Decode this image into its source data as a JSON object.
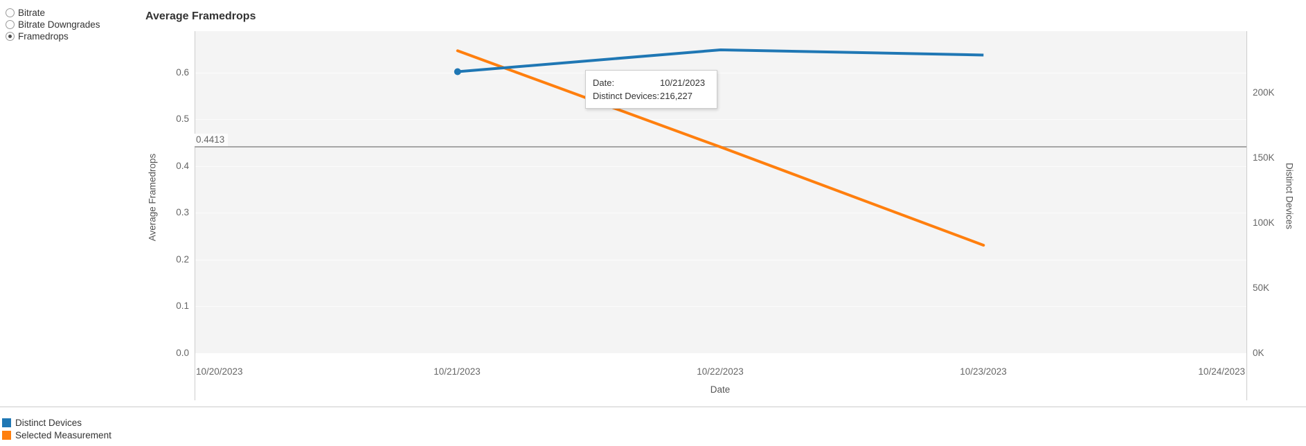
{
  "controls": {
    "radios": [
      {
        "label": "Bitrate",
        "selected": false
      },
      {
        "label": "Bitrate Downgrades",
        "selected": false
      },
      {
        "label": "Framedrops",
        "selected": true
      }
    ]
  },
  "chart": {
    "title": "Average Framedrops",
    "y_left": {
      "title": "Average Framedrops",
      "ticks": [
        "0.6",
        "0.5",
        "0.4",
        "0.3",
        "0.2",
        "0.1",
        "0.0"
      ]
    },
    "y_right": {
      "title": "Distinct Devices",
      "ticks": [
        "200K",
        "150K",
        "100K",
        "50K",
        "0K"
      ]
    },
    "x": {
      "title": "Date",
      "ticks": [
        "10/20/2023",
        "10/21/2023",
        "10/22/2023",
        "10/23/2023",
        "10/24/2023"
      ]
    },
    "avg_line": {
      "label": "0.4413"
    }
  },
  "tooltip": {
    "rows": [
      {
        "label": "Date:",
        "value": "10/21/2023"
      },
      {
        "label": "Distinct Devices:",
        "value": "216,227"
      }
    ]
  },
  "legend": {
    "items": [
      {
        "label": "Distinct Devices",
        "color": "#1f77b4"
      },
      {
        "label": "Selected Measurement",
        "color": "#ff7f0e"
      }
    ]
  },
  "colors": {
    "series_blue": "#1f77b4",
    "series_orange": "#ff7f0e",
    "reference_line": "#a6a6a6",
    "plot_background": "#f4f4f4",
    "axis_line": "#cccccc"
  },
  "chart_data": {
    "type": "line",
    "title": "Average Framedrops",
    "xlabel": "Date",
    "ylabel_left": "Average Framedrops",
    "ylabel_right": "Distinct Devices",
    "x": [
      "10/21/2023",
      "10/22/2023",
      "10/23/2023"
    ],
    "x_axis_ticks": [
      "10/20/2023",
      "10/21/2023",
      "10/22/2023",
      "10/23/2023",
      "10/24/2023"
    ],
    "series": [
      {
        "name": "Distinct Devices",
        "axis": "right",
        "color": "#1f77b4",
        "values": [
          216227,
          233000,
          229000
        ],
        "marker_on_point": 0
      },
      {
        "name": "Selected Measurement",
        "axis": "left",
        "color": "#ff7f0e",
        "values": [
          0.647,
          0.441,
          0.231
        ]
      }
    ],
    "reference_line": {
      "axis": "left",
      "value": 0.4413,
      "label": "0.4413"
    },
    "ylim_left": [
      0,
      0.69
    ],
    "ylim_right": [
      0,
      247500
    ],
    "yticks_left": [
      0.0,
      0.1,
      0.2,
      0.3,
      0.4,
      0.5,
      0.6
    ],
    "yticks_right": [
      0,
      50000,
      100000,
      150000,
      200000
    ],
    "grid": "horizontal-faint",
    "legend_position": "bottom-left",
    "hovered_point": {
      "series": "Distinct Devices",
      "date": "10/21/2023",
      "value": 216227
    }
  }
}
